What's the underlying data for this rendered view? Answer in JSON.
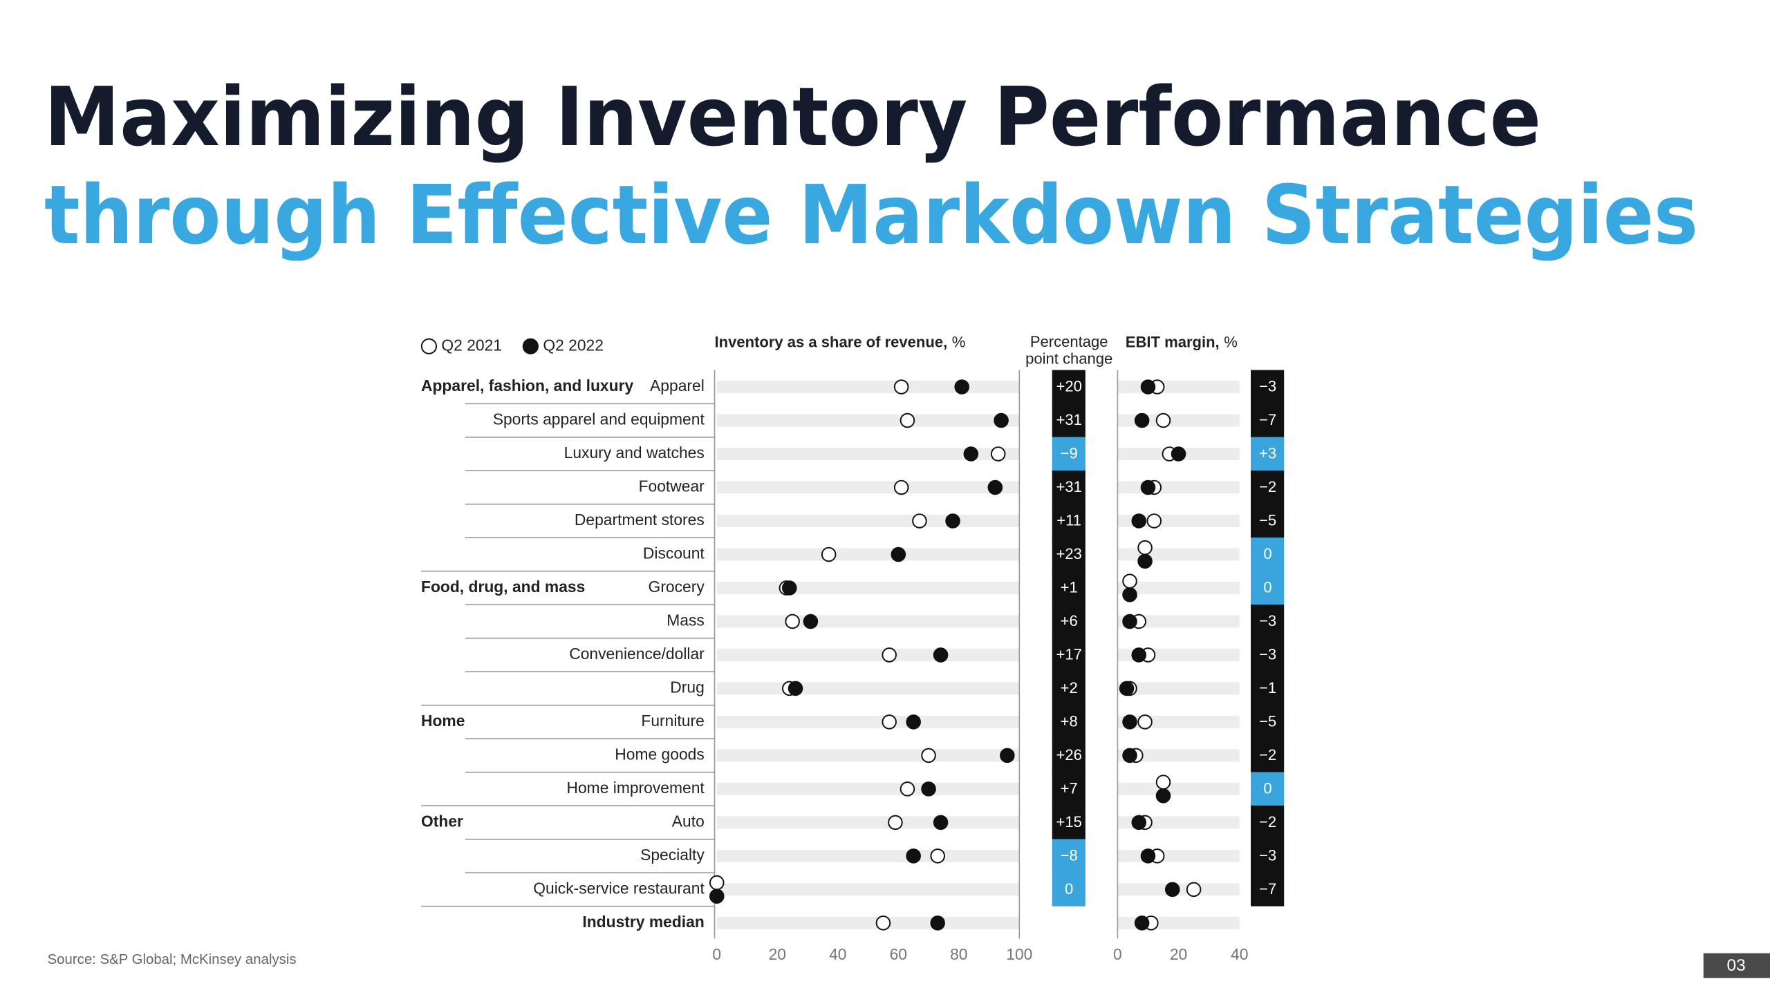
{
  "title_line1": "Maximizing Inventory Performance",
  "title_line2": "through Effective Markdown Strategies",
  "source": "Source: S&P Global; McKinsey analysis",
  "page_number": "03",
  "chart_data": [
    {
      "type": "dot",
      "title": "Inventory as a share of revenue,",
      "unit": "%",
      "categories": [
        "Apparel",
        "Sports apparel and equipment",
        "Luxury and watches",
        "Footwear",
        "Department stores",
        "Discount",
        "Grocery",
        "Mass",
        "Convenience/dollar",
        "Drug",
        "Furniture",
        "Home goods",
        "Home improvement",
        "Auto",
        "Specialty",
        "Quick-service restaurant",
        "Industry median"
      ],
      "group_labels": [
        "Apparel, fashion, and luxury",
        null,
        null,
        null,
        null,
        null,
        "Food, drug, and mass",
        null,
        null,
        null,
        "Home",
        null,
        null,
        "Other",
        null,
        null,
        null
      ],
      "series": [
        {
          "name": "Q2 2021",
          "color": "#ffffff",
          "values": [
            61,
            63,
            93,
            61,
            67,
            37,
            23,
            25,
            57,
            24,
            57,
            70,
            63,
            59,
            73,
            0,
            55
          ]
        },
        {
          "name": "Q2 2022",
          "color": "#111111",
          "values": [
            81,
            94,
            84,
            92,
            78,
            60,
            24,
            31,
            74,
            26,
            65,
            96,
            70,
            74,
            65,
            0,
            73
          ]
        }
      ],
      "xlim": [
        0,
        100
      ],
      "xticks": [
        0,
        20,
        40,
        60,
        80,
        100
      ],
      "change": {
        "title_lines": [
          "Percentage",
          "point change"
        ],
        "values": [
          20,
          31,
          -9,
          31,
          11,
          23,
          1,
          6,
          17,
          2,
          8,
          26,
          7,
          15,
          -8,
          0
        ],
        "value_labels": [
          "+20",
          "+31",
          "−9",
          "+31",
          "+11",
          "+23",
          "+1",
          "+6",
          "+17",
          "+2",
          "+8",
          "+26",
          "+7",
          "+15",
          "−8",
          "0"
        ],
        "colors": [
          "#111111",
          "#111111",
          "#3aa4dc",
          "#111111",
          "#111111",
          "#111111",
          "#111111",
          "#111111",
          "#111111",
          "#111111",
          "#111111",
          "#111111",
          "#111111",
          "#111111",
          "#3aa4dc",
          "#3aa4dc"
        ]
      }
    },
    {
      "type": "dot",
      "title": "EBIT margin,",
      "unit": "%",
      "series": [
        {
          "color": "#ffffff",
          "values": [
            13,
            15,
            17,
            12,
            12,
            9,
            4,
            7,
            10,
            4,
            9,
            6,
            15,
            9,
            13,
            25,
            11
          ]
        },
        {
          "color": "#111111",
          "values": [
            10,
            8,
            20,
            10,
            7,
            9,
            4,
            4,
            7,
            3,
            4,
            4,
            15,
            7,
            10,
            18,
            8
          ]
        }
      ],
      "xlim": [
        0,
        40
      ],
      "xticks": [
        0,
        20,
        40
      ],
      "change": {
        "values": [
          -3,
          -7,
          3,
          -2,
          -5,
          0,
          0,
          -3,
          -3,
          -1,
          -5,
          -2,
          0,
          -2,
          -3,
          -7
        ],
        "value_labels": [
          "−3",
          "−7",
          "+3",
          "−2",
          "−5",
          "0",
          "0",
          "−3",
          "−3",
          "−1",
          "−5",
          "−2",
          "0",
          "−2",
          "−3",
          "−7"
        ],
        "colors": [
          "#111111",
          "#111111",
          "#3aa4dc",
          "#111111",
          "#111111",
          "#3aa4dc",
          "#3aa4dc",
          "#111111",
          "#111111",
          "#111111",
          "#111111",
          "#111111",
          "#3aa4dc",
          "#111111",
          "#111111",
          "#111111"
        ]
      }
    }
  ]
}
